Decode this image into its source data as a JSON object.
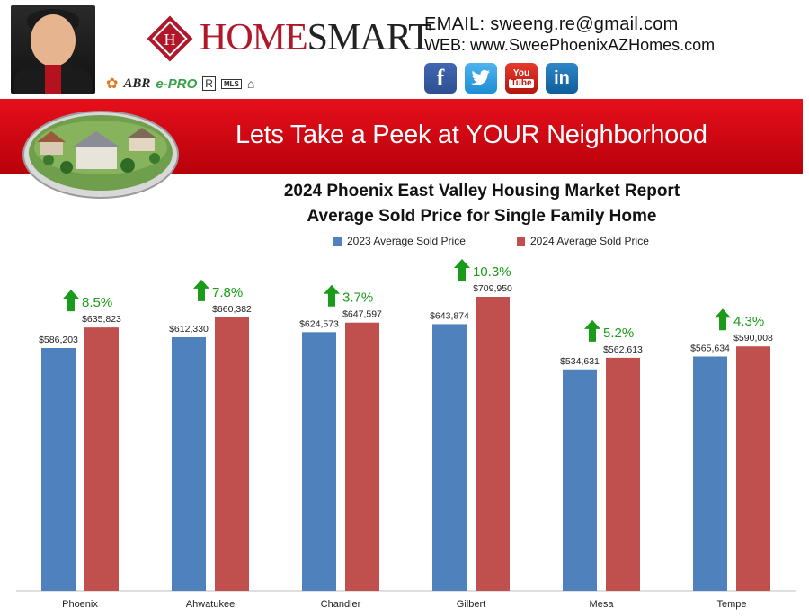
{
  "header": {
    "logo_text_main": "HOME",
    "logo_text_accent": "SMART",
    "email_line": "EMAIL: sweeng.re@gmail.com",
    "web_line": "WEB: www.SweePhoenixAZHomes.com",
    "badges": [
      "ABR",
      "e-PRO",
      "MLS"
    ],
    "social": [
      {
        "name": "facebook",
        "label": "f",
        "color": "#3b5998"
      },
      {
        "name": "twitter",
        "label": "🐦",
        "color": "#1da1f2"
      },
      {
        "name": "youtube",
        "label": "You\nTube",
        "color": "#d8231a"
      },
      {
        "name": "linkedin",
        "label": "in",
        "color": "#0e76a8"
      }
    ]
  },
  "banner": {
    "text": "Lets Take a Peek at YOUR Neighborhood",
    "color": "#d4000c"
  },
  "chart_data": {
    "type": "bar",
    "title": "2024 Phoenix East Valley Housing Market Report",
    "subtitle": "Average Sold Price for Single Family Home",
    "categories": [
      "Phoenix",
      "Ahwatukee",
      "Chandler",
      "Gilbert",
      "Mesa",
      "Tempe"
    ],
    "series": [
      {
        "name": "2023 Average Sold Price",
        "color": "#4f81bd",
        "values": [
          586203,
          612330,
          624573,
          643874,
          534631,
          565634
        ],
        "labels": [
          "$586,203",
          "$612,330",
          "$624,573",
          "$643,874",
          "$534,631",
          "$565,634"
        ]
      },
      {
        "name": "2024 Average Sold Price",
        "color": "#c0504d",
        "values": [
          635823,
          660382,
          647597,
          709950,
          562613,
          590008
        ],
        "labels": [
          "$635,823",
          "$660,382",
          "$647,597",
          "$709,950",
          "$562,613",
          "$590,008"
        ]
      }
    ],
    "changes": [
      "8.5%",
      "7.8%",
      "3.7%",
      "10.3%",
      "5.2%",
      "4.3%"
    ],
    "change_color": "#1a9b1a",
    "ylim": [
      0,
      800000
    ],
    "legend_position": "top",
    "grid": false
  }
}
